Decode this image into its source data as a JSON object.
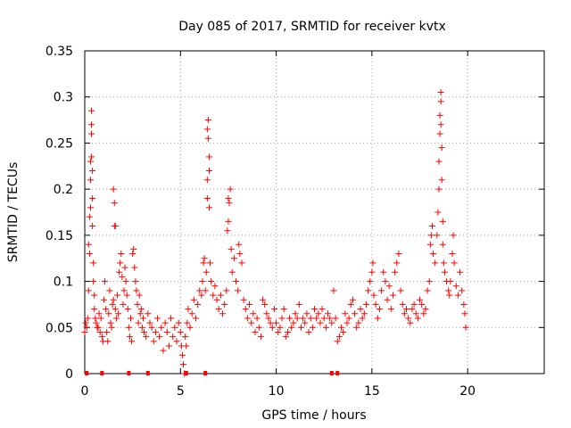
{
  "chart_data": {
    "type": "scatter",
    "title": "Day 085 of 2017, SRMTID for receiver kvtx",
    "xlabel": "GPS time / hours",
    "ylabel": "SRMTID / TECUs",
    "xlim": [
      0,
      24
    ],
    "ylim": [
      0,
      0.35
    ],
    "x_ticks": [
      0,
      5,
      10,
      15,
      20
    ],
    "y_ticks": [
      0,
      0.05,
      0.1,
      0.15,
      0.2,
      0.25,
      0.3,
      0.35
    ],
    "x_tick_labels": [
      "0",
      "5",
      "10",
      "15",
      "20"
    ],
    "y_tick_labels": [
      "0",
      "0.05",
      "0.1",
      "0.15",
      "0.2",
      "0.25",
      "0.3",
      "0.35"
    ],
    "grid": true,
    "marker": "+",
    "color": "#ff0000",
    "series": [
      {
        "name": "SRMTID",
        "points": [
          [
            0.0,
            0.045
          ],
          [
            0.05,
            0.055
          ],
          [
            0.1,
            0.05
          ],
          [
            0.15,
            0.06
          ],
          [
            0.2,
            0.09
          ],
          [
            0.2,
            0.14
          ],
          [
            0.25,
            0.13
          ],
          [
            0.25,
            0.17
          ],
          [
            0.3,
            0.18
          ],
          [
            0.3,
            0.21
          ],
          [
            0.3,
            0.23
          ],
          [
            0.35,
            0.26
          ],
          [
            0.35,
            0.285
          ],
          [
            0.35,
            0.27
          ],
          [
            0.35,
            0.235
          ],
          [
            0.4,
            0.22
          ],
          [
            0.4,
            0.19
          ],
          [
            0.4,
            0.16
          ],
          [
            0.45,
            0.12
          ],
          [
            0.45,
            0.1
          ],
          [
            0.5,
            0.085
          ],
          [
            0.5,
            0.07
          ],
          [
            0.55,
            0.06
          ],
          [
            0.6,
            0.055
          ],
          [
            0.65,
            0.05
          ],
          [
            0.7,
            0.05
          ],
          [
            0.75,
            0.065
          ],
          [
            0.8,
            0.045
          ],
          [
            0.85,
            0.06
          ],
          [
            0.9,
            0.04
          ],
          [
            0.95,
            0.035
          ],
          [
            1.0,
            0.08
          ],
          [
            1.05,
            0.1
          ],
          [
            1.1,
            0.07
          ],
          [
            1.15,
            0.045
          ],
          [
            1.2,
            0.035
          ],
          [
            1.25,
            0.065
          ],
          [
            1.3,
            0.09
          ],
          [
            1.35,
            0.055
          ],
          [
            1.4,
            0.05
          ],
          [
            1.45,
            0.075
          ],
          [
            1.5,
            0.08
          ],
          [
            1.5,
            0.2
          ],
          [
            1.55,
            0.185
          ],
          [
            1.55,
            0.16
          ],
          [
            1.6,
            0.07
          ],
          [
            1.6,
            0.16
          ],
          [
            1.65,
            0.06
          ],
          [
            1.7,
            0.085
          ],
          [
            1.75,
            0.065
          ],
          [
            1.8,
            0.11
          ],
          [
            1.85,
            0.12
          ],
          [
            1.9,
            0.13
          ],
          [
            1.95,
            0.105
          ],
          [
            2.0,
            0.075
          ],
          [
            2.05,
            0.09
          ],
          [
            2.1,
            0.115
          ],
          [
            2.15,
            0.1
          ],
          [
            2.2,
            0.085
          ],
          [
            2.25,
            0.07
          ],
          [
            2.3,
            0.05
          ],
          [
            2.35,
            0.04
          ],
          [
            2.4,
            0.06
          ],
          [
            2.45,
            0.035
          ],
          [
            2.5,
            0.13
          ],
          [
            2.55,
            0.135
          ],
          [
            2.6,
            0.115
          ],
          [
            2.65,
            0.1
          ],
          [
            2.7,
            0.09
          ],
          [
            2.75,
            0.075
          ],
          [
            2.8,
            0.055
          ],
          [
            2.85,
            0.085
          ],
          [
            2.9,
            0.065
          ],
          [
            2.95,
            0.07
          ],
          [
            3.0,
            0.05
          ],
          [
            3.05,
            0.06
          ],
          [
            3.1,
            0.045
          ],
          [
            3.2,
            0.04
          ],
          [
            3.3,
            0.065
          ],
          [
            3.4,
            0.055
          ],
          [
            3.5,
            0.05
          ],
          [
            3.6,
            0.035
          ],
          [
            3.7,
            0.045
          ],
          [
            3.8,
            0.06
          ],
          [
            3.9,
            0.04
          ],
          [
            4.0,
            0.05
          ],
          [
            4.1,
            0.025
          ],
          [
            4.2,
            0.055
          ],
          [
            4.3,
            0.045
          ],
          [
            4.4,
            0.03
          ],
          [
            4.5,
            0.06
          ],
          [
            4.6,
            0.04
          ],
          [
            4.7,
            0.05
          ],
          [
            4.8,
            0.035
          ],
          [
            4.9,
            0.055
          ],
          [
            5.0,
            0.045
          ],
          [
            5.05,
            0.03
          ],
          [
            5.1,
            0.02
          ],
          [
            5.15,
            0.01
          ],
          [
            5.2,
            0.0
          ],
          [
            5.25,
            0.04
          ],
          [
            5.3,
            0.03
          ],
          [
            5.35,
            0.055
          ],
          [
            5.4,
            0.07
          ],
          [
            5.5,
            0.05
          ],
          [
            5.6,
            0.065
          ],
          [
            5.7,
            0.08
          ],
          [
            5.8,
            0.06
          ],
          [
            5.9,
            0.075
          ],
          [
            6.0,
            0.09
          ],
          [
            6.1,
            0.085
          ],
          [
            6.15,
            0.1
          ],
          [
            6.2,
            0.12
          ],
          [
            6.25,
            0.125
          ],
          [
            6.3,
            0.09
          ],
          [
            6.35,
            0.11
          ],
          [
            6.4,
            0.19
          ],
          [
            6.4,
            0.21
          ],
          [
            6.4,
            0.265
          ],
          [
            6.45,
            0.275
          ],
          [
            6.45,
            0.255
          ],
          [
            6.5,
            0.235
          ],
          [
            6.5,
            0.18
          ],
          [
            6.5,
            0.22
          ],
          [
            6.55,
            0.12
          ],
          [
            6.6,
            0.1
          ],
          [
            6.7,
            0.085
          ],
          [
            6.8,
            0.095
          ],
          [
            6.9,
            0.08
          ],
          [
            7.0,
            0.07
          ],
          [
            7.1,
            0.085
          ],
          [
            7.2,
            0.065
          ],
          [
            7.3,
            0.075
          ],
          [
            7.4,
            0.09
          ],
          [
            7.45,
            0.155
          ],
          [
            7.5,
            0.165
          ],
          [
            7.5,
            0.19
          ],
          [
            7.55,
            0.185
          ],
          [
            7.6,
            0.2
          ],
          [
            7.65,
            0.135
          ],
          [
            7.7,
            0.11
          ],
          [
            7.8,
            0.125
          ],
          [
            7.9,
            0.1
          ],
          [
            8.0,
            0.09
          ],
          [
            8.05,
            0.14
          ],
          [
            8.1,
            0.13
          ],
          [
            8.2,
            0.12
          ],
          [
            8.3,
            0.08
          ],
          [
            8.4,
            0.07
          ],
          [
            8.5,
            0.06
          ],
          [
            8.6,
            0.075
          ],
          [
            8.7,
            0.055
          ],
          [
            8.8,
            0.065
          ],
          [
            8.9,
            0.045
          ],
          [
            9.0,
            0.06
          ],
          [
            9.1,
            0.05
          ],
          [
            9.2,
            0.04
          ],
          [
            9.3,
            0.08
          ],
          [
            9.4,
            0.075
          ],
          [
            9.5,
            0.065
          ],
          [
            9.6,
            0.06
          ],
          [
            9.7,
            0.055
          ],
          [
            9.8,
            0.05
          ],
          [
            9.9,
            0.07
          ],
          [
            10.0,
            0.055
          ],
          [
            10.1,
            0.045
          ],
          [
            10.2,
            0.05
          ],
          [
            10.3,
            0.06
          ],
          [
            10.4,
            0.07
          ],
          [
            10.5,
            0.04
          ],
          [
            10.6,
            0.045
          ],
          [
            10.7,
            0.06
          ],
          [
            10.8,
            0.05
          ],
          [
            10.9,
            0.055
          ],
          [
            11.0,
            0.065
          ],
          [
            11.1,
            0.06
          ],
          [
            11.2,
            0.075
          ],
          [
            11.3,
            0.05
          ],
          [
            11.4,
            0.06
          ],
          [
            11.5,
            0.055
          ],
          [
            11.6,
            0.065
          ],
          [
            11.7,
            0.045
          ],
          [
            11.8,
            0.06
          ],
          [
            11.9,
            0.05
          ],
          [
            12.0,
            0.07
          ],
          [
            12.1,
            0.06
          ],
          [
            12.2,
            0.065
          ],
          [
            12.3,
            0.055
          ],
          [
            12.4,
            0.07
          ],
          [
            12.5,
            0.06
          ],
          [
            12.6,
            0.05
          ],
          [
            12.7,
            0.065
          ],
          [
            12.8,
            0.06
          ],
          [
            12.9,
            0.055
          ],
          [
            13.0,
            0.09
          ],
          [
            13.1,
            0.06
          ],
          [
            13.2,
            0.035
          ],
          [
            13.3,
            0.04
          ],
          [
            13.4,
            0.05
          ],
          [
            13.5,
            0.045
          ],
          [
            13.6,
            0.065
          ],
          [
            13.7,
            0.055
          ],
          [
            13.8,
            0.06
          ],
          [
            13.9,
            0.075
          ],
          [
            14.0,
            0.08
          ],
          [
            14.1,
            0.065
          ],
          [
            14.2,
            0.05
          ],
          [
            14.3,
            0.055
          ],
          [
            14.4,
            0.07
          ],
          [
            14.5,
            0.06
          ],
          [
            14.6,
            0.065
          ],
          [
            14.7,
            0.075
          ],
          [
            14.8,
            0.09
          ],
          [
            14.9,
            0.1
          ],
          [
            15.0,
            0.11
          ],
          [
            15.05,
            0.12
          ],
          [
            15.1,
            0.085
          ],
          [
            15.2,
            0.075
          ],
          [
            15.3,
            0.06
          ],
          [
            15.4,
            0.07
          ],
          [
            15.5,
            0.09
          ],
          [
            15.6,
            0.11
          ],
          [
            15.7,
            0.1
          ],
          [
            15.8,
            0.08
          ],
          [
            15.9,
            0.095
          ],
          [
            16.0,
            0.07
          ],
          [
            16.1,
            0.085
          ],
          [
            16.2,
            0.11
          ],
          [
            16.3,
            0.12
          ],
          [
            16.4,
            0.13
          ],
          [
            16.5,
            0.09
          ],
          [
            16.6,
            0.075
          ],
          [
            16.7,
            0.065
          ],
          [
            16.8,
            0.07
          ],
          [
            16.9,
            0.06
          ],
          [
            17.0,
            0.055
          ],
          [
            17.1,
            0.07
          ],
          [
            17.2,
            0.075
          ],
          [
            17.3,
            0.065
          ],
          [
            17.4,
            0.06
          ],
          [
            17.5,
            0.08
          ],
          [
            17.6,
            0.075
          ],
          [
            17.7,
            0.065
          ],
          [
            17.8,
            0.07
          ],
          [
            17.9,
            0.09
          ],
          [
            18.0,
            0.1
          ],
          [
            18.05,
            0.14
          ],
          [
            18.1,
            0.15
          ],
          [
            18.15,
            0.16
          ],
          [
            18.2,
            0.13
          ],
          [
            18.3,
            0.12
          ],
          [
            18.4,
            0.15
          ],
          [
            18.45,
            0.175
          ],
          [
            18.5,
            0.2
          ],
          [
            18.5,
            0.23
          ],
          [
            18.55,
            0.26
          ],
          [
            18.55,
            0.28
          ],
          [
            18.6,
            0.305
          ],
          [
            18.6,
            0.295
          ],
          [
            18.6,
            0.27
          ],
          [
            18.65,
            0.245
          ],
          [
            18.65,
            0.21
          ],
          [
            18.7,
            0.165
          ],
          [
            18.7,
            0.14
          ],
          [
            18.75,
            0.12
          ],
          [
            18.8,
            0.11
          ],
          [
            18.9,
            0.1
          ],
          [
            19.0,
            0.09
          ],
          [
            19.05,
            0.085
          ],
          [
            19.1,
            0.1
          ],
          [
            19.2,
            0.13
          ],
          [
            19.25,
            0.15
          ],
          [
            19.3,
            0.12
          ],
          [
            19.4,
            0.095
          ],
          [
            19.5,
            0.085
          ],
          [
            19.6,
            0.11
          ],
          [
            19.7,
            0.09
          ],
          [
            19.8,
            0.075
          ],
          [
            19.85,
            0.065
          ],
          [
            19.9,
            0.05
          ]
        ]
      }
    ],
    "zero_markers_x": [
      0.1,
      0.9,
      2.3,
      3.3,
      5.3,
      6.3,
      12.9,
      13.2
    ]
  }
}
